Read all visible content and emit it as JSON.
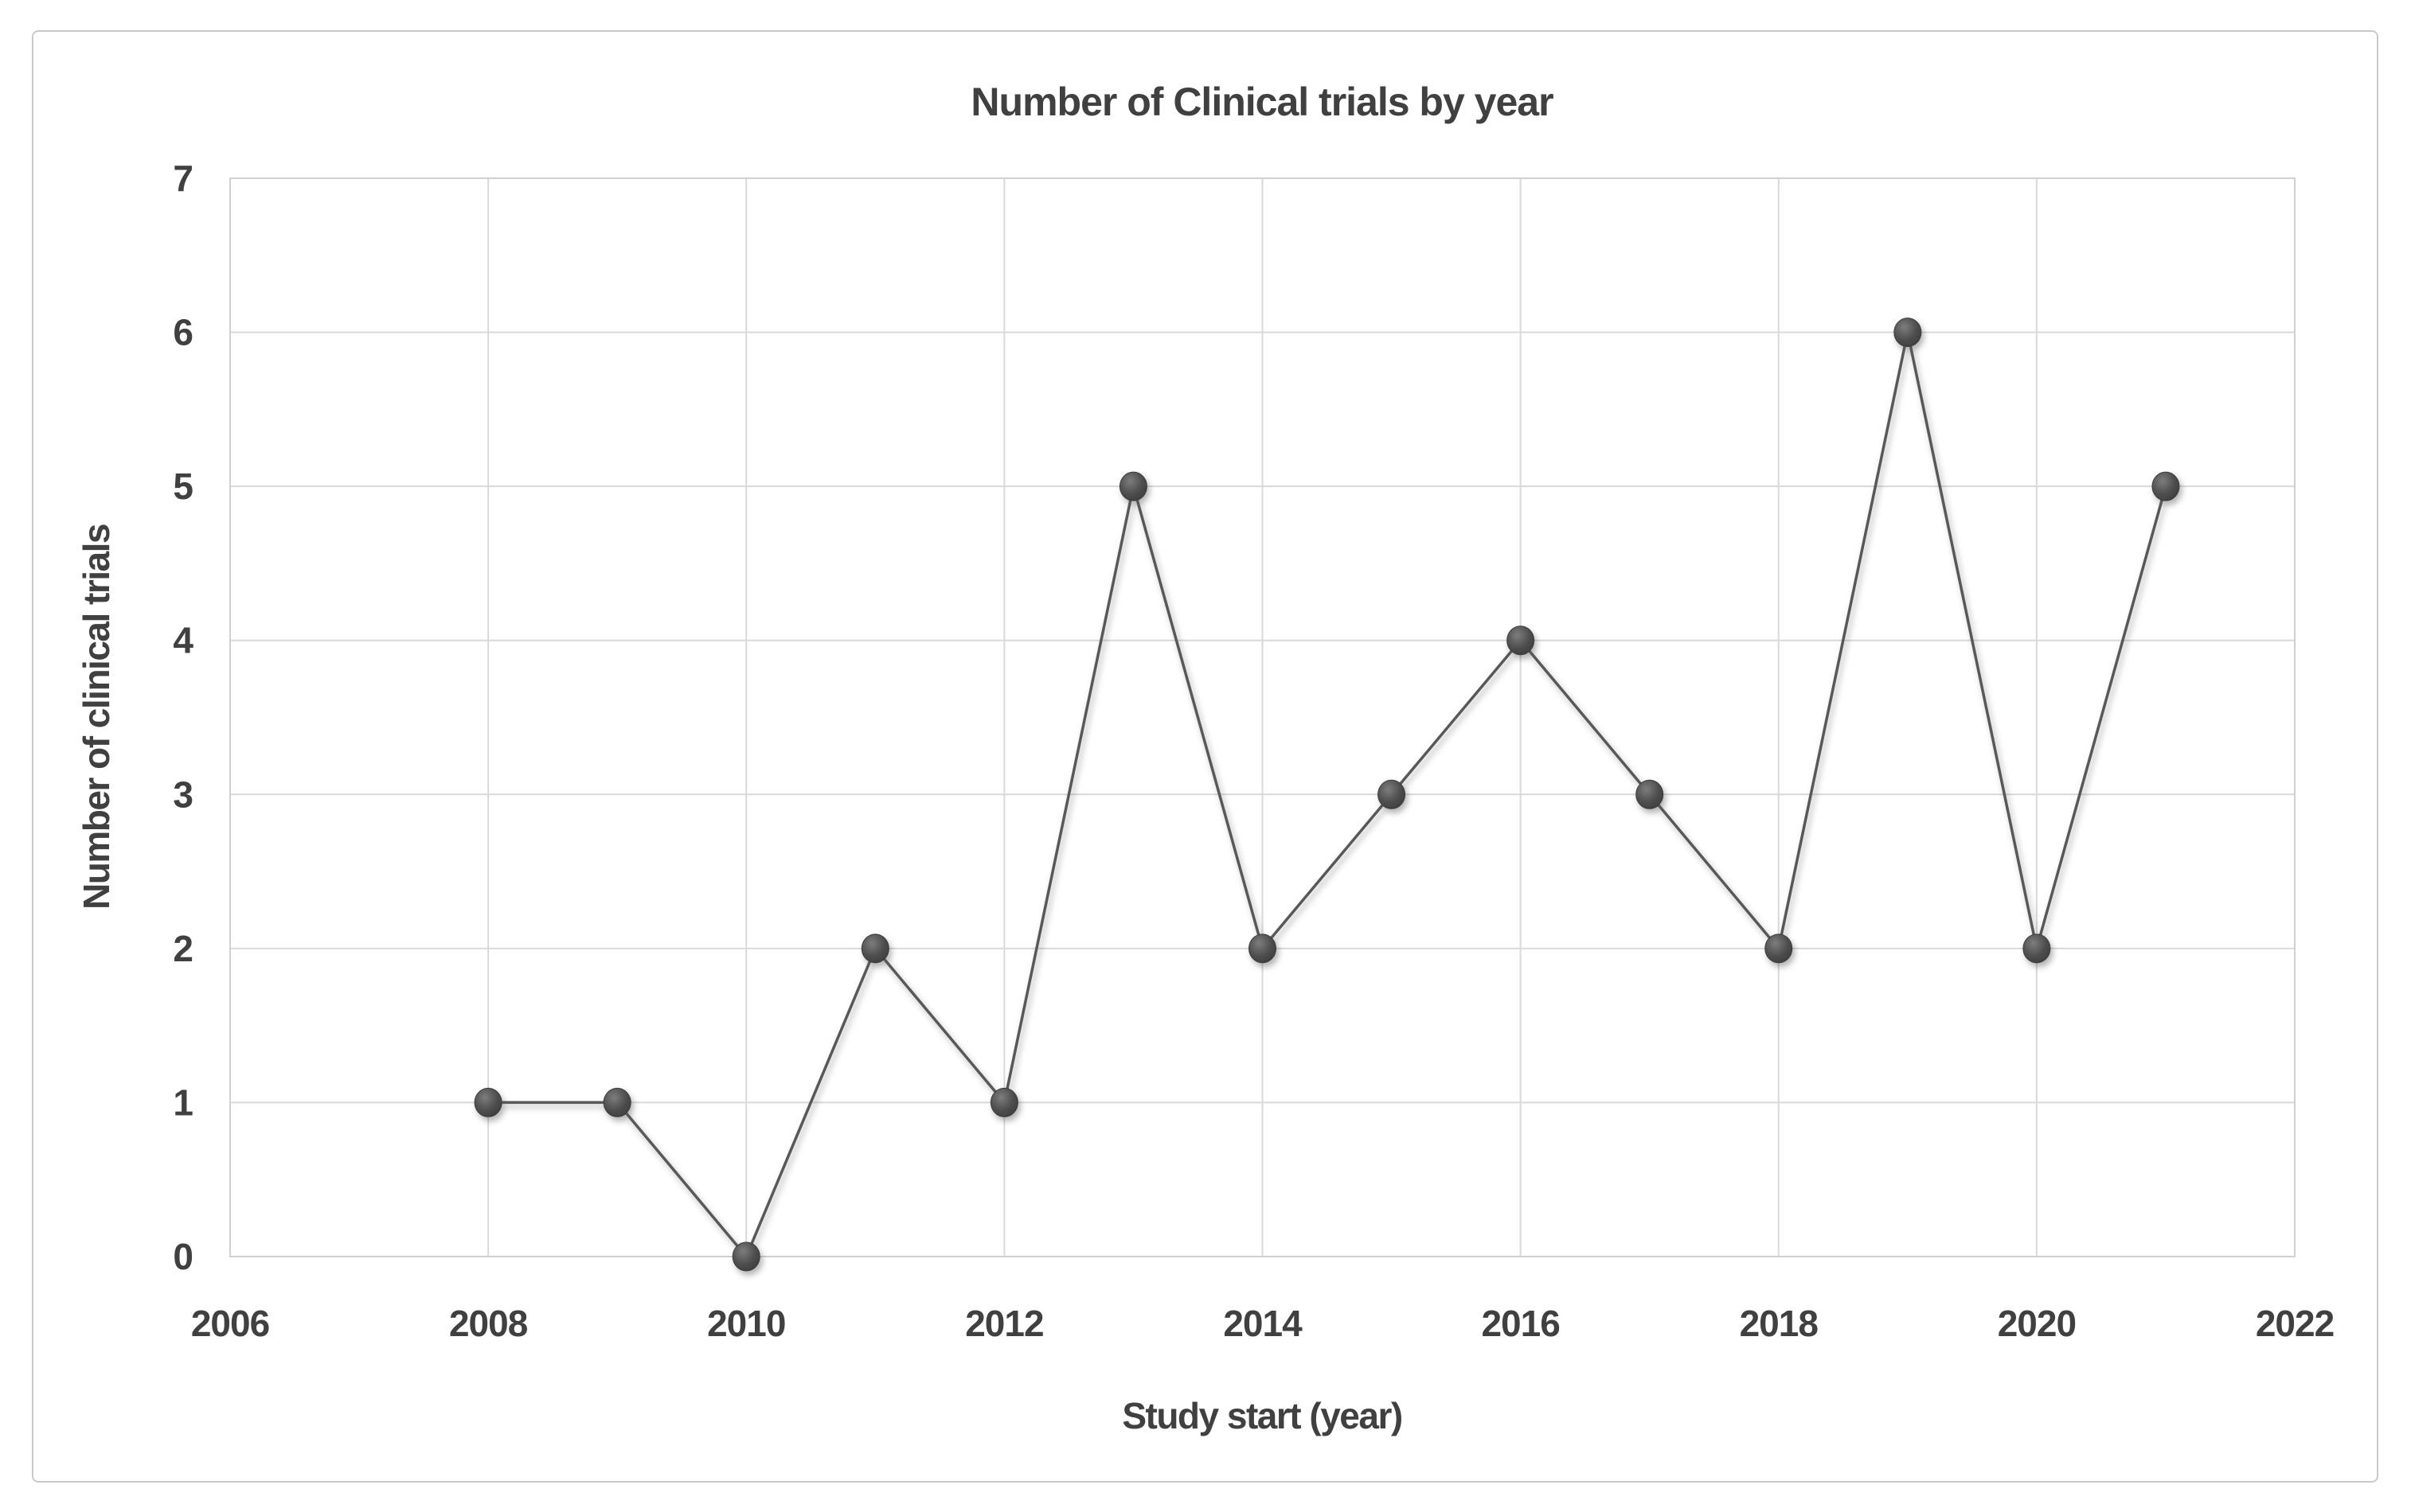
{
  "chart_data": {
    "type": "line",
    "title": "Number of Clinical trials by year",
    "xlabel": "Study start (year)",
    "ylabel": "Number of clinical trials",
    "x": [
      2008,
      2009,
      2010,
      2011,
      2012,
      2013,
      2014,
      2015,
      2016,
      2017,
      2018,
      2019,
      2020,
      2021
    ],
    "values": [
      1,
      1,
      0,
      2,
      1,
      5,
      2,
      3,
      4,
      3,
      2,
      6,
      2,
      5
    ],
    "xlim": [
      2006,
      2022
    ],
    "ylim": [
      0,
      7
    ],
    "x_ticks": [
      2006,
      2008,
      2010,
      2012,
      2014,
      2016,
      2018,
      2020,
      2022
    ],
    "y_ticks": [
      0,
      1,
      2,
      3,
      4,
      5,
      6,
      7
    ],
    "grid": true,
    "legend": "none",
    "marker": "circle"
  },
  "colors": {
    "text": "#404040",
    "grid": "#d9d9d9",
    "plot_border": "#d0d0d0",
    "line": "#595959",
    "marker_fill": "#4a4a4a",
    "marker_edge": "#3c3c3c",
    "marker_highlight": "#7d7d7d",
    "frame_border": "#c9c9c9",
    "background": "#ffffff"
  }
}
